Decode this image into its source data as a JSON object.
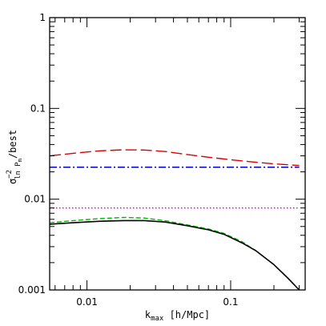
{
  "chart_data": {
    "type": "line",
    "title": "",
    "xlabel": {
      "main": "k",
      "sub": "max",
      "rest": " [h/Mpc]"
    },
    "ylabel": {
      "sigma": "σ",
      "sup": "−2",
      "sub": "ln P",
      "subsub": "m",
      "rest": "/best"
    },
    "xscale": "log",
    "yscale": "log",
    "xlim": [
      0.0055,
      0.33
    ],
    "ylim": [
      0.001,
      1
    ],
    "x_tick_labels": [
      {
        "value": 0.01,
        "label": "0.01"
      },
      {
        "value": 0.1,
        "label": "0.1"
      }
    ],
    "y_tick_labels": [
      {
        "value": 0.001,
        "label": "0.001"
      },
      {
        "value": 0.01,
        "label": "0.01"
      },
      {
        "value": 0.1,
        "label": "0.1"
      },
      {
        "value": 1,
        "label": "1"
      }
    ],
    "grid": false,
    "legend": "none",
    "series": [
      {
        "color": "#dd0000",
        "dash": "long-dash",
        "x": [
          0.0055,
          0.008,
          0.012,
          0.018,
          0.025,
          0.035,
          0.05,
          0.07,
          0.1,
          0.15,
          0.2,
          0.3
        ],
        "y": [
          0.03,
          0.032,
          0.034,
          0.035,
          0.0348,
          0.0335,
          0.031,
          0.029,
          0.0272,
          0.0255,
          0.0245,
          0.0235
        ]
      },
      {
        "color": "#0000cc",
        "dash": "dash-dot",
        "x": [
          0.0055,
          0.3
        ],
        "y": [
          0.0225,
          0.0225
        ]
      },
      {
        "color": "#cc00cc",
        "dash": "dotted",
        "x": [
          0.0055,
          0.3
        ],
        "y": [
          0.008,
          0.008
        ]
      },
      {
        "color": "#00bb00",
        "dash": "dashed",
        "x": [
          0.0055,
          0.008,
          0.012,
          0.018,
          0.025,
          0.035,
          0.05,
          0.07,
          0.09,
          0.12,
          0.15,
          0.2,
          0.25,
          0.3
        ],
        "y": [
          0.0055,
          0.0058,
          0.0061,
          0.0063,
          0.0062,
          0.0058,
          0.0052,
          0.0047,
          0.0042,
          0.0034,
          0.0027,
          0.0019,
          0.00135,
          0.001
        ]
      },
      {
        "color": "#000000",
        "dash": "solid",
        "x": [
          0.0055,
          0.008,
          0.012,
          0.018,
          0.025,
          0.035,
          0.05,
          0.07,
          0.09,
          0.12,
          0.15,
          0.2,
          0.25,
          0.3
        ],
        "y": [
          0.0053,
          0.0055,
          0.0057,
          0.0058,
          0.0058,
          0.0056,
          0.0051,
          0.0046,
          0.0041,
          0.0033,
          0.0027,
          0.0019,
          0.00135,
          0.001
        ]
      }
    ]
  }
}
